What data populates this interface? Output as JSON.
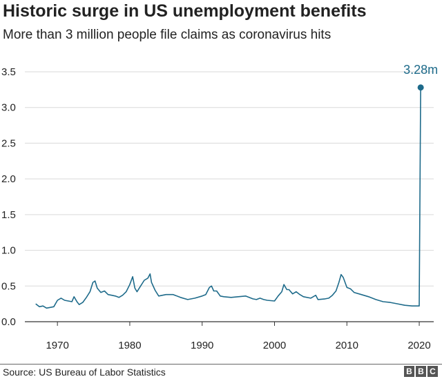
{
  "chart_data": {
    "type": "line",
    "title": "Historic surge in US unemployment benefits",
    "subtitle": "More than 3 million people file claims as coronavirus hits",
    "xlabel": "",
    "ylabel": "",
    "xlim": [
      1965.5,
      2022
    ],
    "ylim": [
      0,
      3.5
    ],
    "yticks": [
      0,
      0.5,
      1,
      1.5,
      2,
      2.5,
      3,
      3.5
    ],
    "ytick_labels": [
      "0.0",
      "0.5",
      "1.0",
      "1.5",
      "2.0",
      "2.5",
      "3.0",
      "3.5"
    ],
    "xticks": [
      1970,
      1980,
      1990,
      2000,
      2010,
      2020
    ],
    "xtick_labels": [
      "1970",
      "1980",
      "1990",
      "2000",
      "2010",
      "2020"
    ],
    "grid": "horizontal",
    "color": "#1d6a8a",
    "series": [
      {
        "x": [
          1967.0,
          1967.5,
          1968.0,
          1968.5,
          1969.0,
          1969.5,
          1970.0,
          1970.5,
          1971.0,
          1971.5,
          1972.0,
          1972.3,
          1972.7,
          1973.0,
          1973.5,
          1974.0,
          1974.5,
          1974.9,
          1975.2,
          1975.5,
          1976.0,
          1976.5,
          1977.0,
          1977.5,
          1978.0,
          1978.5,
          1979.0,
          1979.5,
          1980.0,
          1980.4,
          1980.7,
          1981.0,
          1981.5,
          1982.0,
          1982.5,
          1982.8,
          1983.0,
          1983.5,
          1984.0,
          1985.0,
          1986.0,
          1987.0,
          1988.0,
          1989.0,
          1990.0,
          1990.5,
          1991.0,
          1991.3,
          1991.6,
          1992.0,
          1992.5,
          1993.0,
          1994.0,
          1995.0,
          1996.0,
          1997.0,
          1997.5,
          1998.0,
          1998.5,
          1999.0,
          2000.0,
          2000.5,
          2001.0,
          2001.3,
          2001.7,
          2002.0,
          2002.5,
          2003.0,
          2003.5,
          2004.0,
          2005.0,
          2005.7,
          2006.0,
          2007.0,
          2007.5,
          2008.0,
          2008.5,
          2008.9,
          2009.2,
          2009.5,
          2010.0,
          2010.5,
          2011.0,
          2012.0,
          2013.0,
          2014.0,
          2015.0,
          2016.0,
          2017.0,
          2018.0,
          2019.0,
          2019.8,
          2020.0,
          2020.2
        ],
        "values": [
          0.25,
          0.21,
          0.22,
          0.19,
          0.2,
          0.21,
          0.3,
          0.33,
          0.3,
          0.29,
          0.28,
          0.35,
          0.28,
          0.24,
          0.27,
          0.34,
          0.42,
          0.55,
          0.57,
          0.47,
          0.41,
          0.43,
          0.38,
          0.37,
          0.36,
          0.34,
          0.37,
          0.42,
          0.52,
          0.63,
          0.47,
          0.42,
          0.5,
          0.58,
          0.61,
          0.67,
          0.55,
          0.44,
          0.36,
          0.38,
          0.38,
          0.34,
          0.31,
          0.33,
          0.36,
          0.38,
          0.48,
          0.5,
          0.43,
          0.43,
          0.36,
          0.35,
          0.34,
          0.35,
          0.36,
          0.32,
          0.31,
          0.33,
          0.31,
          0.3,
          0.29,
          0.36,
          0.42,
          0.52,
          0.45,
          0.45,
          0.39,
          0.42,
          0.38,
          0.35,
          0.33,
          0.37,
          0.31,
          0.32,
          0.33,
          0.37,
          0.43,
          0.55,
          0.66,
          0.62,
          0.48,
          0.46,
          0.41,
          0.38,
          0.35,
          0.31,
          0.28,
          0.27,
          0.25,
          0.23,
          0.22,
          0.22,
          0.22,
          3.28
        ]
      }
    ],
    "annotation": {
      "x": 2020.2,
      "y": 3.28,
      "label": "3.28m"
    }
  },
  "footer": {
    "source": "Source: US Bureau of Labor Statistics",
    "logo": [
      "B",
      "B",
      "C"
    ]
  }
}
